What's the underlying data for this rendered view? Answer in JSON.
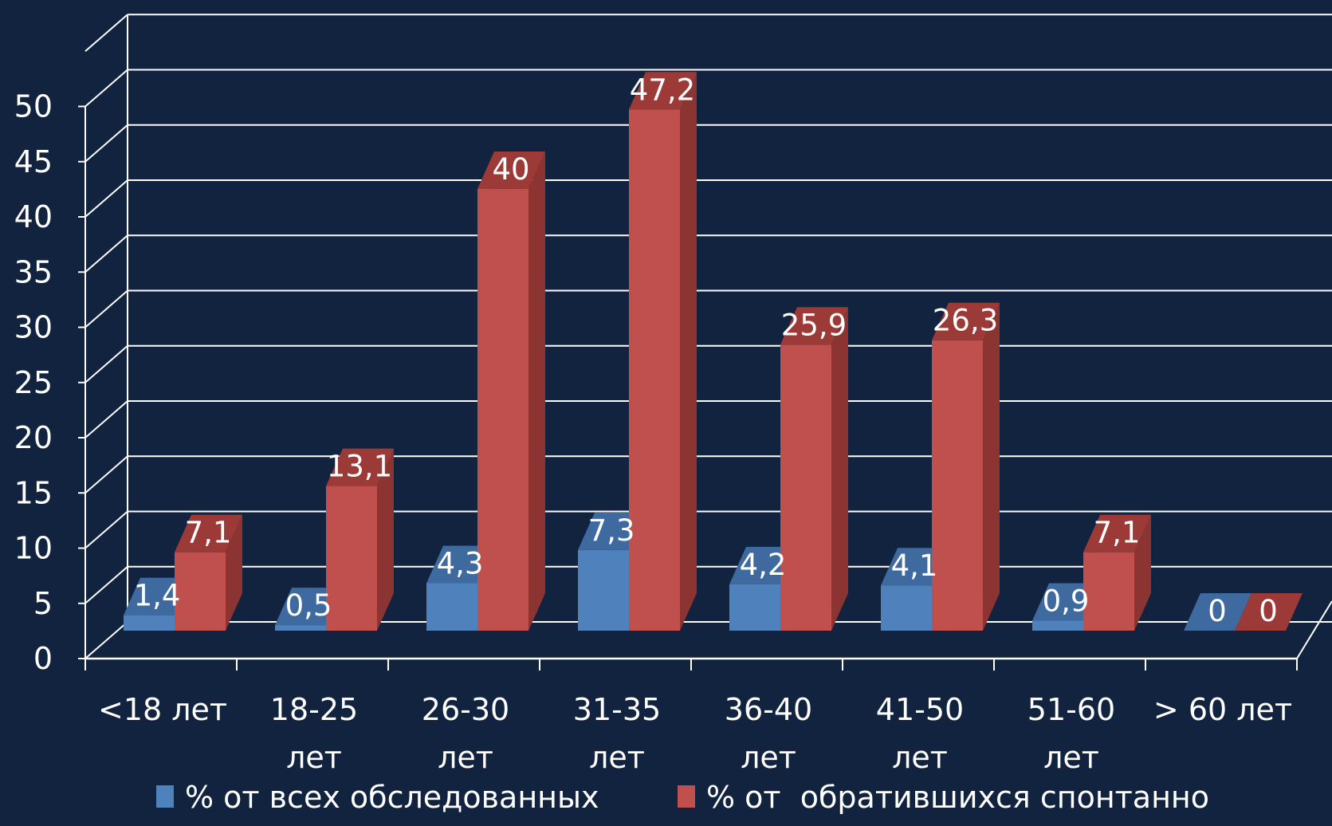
{
  "chart_data": {
    "type": "bar",
    "categories": [
      [
        "<18 лет"
      ],
      [
        "18-25",
        "лет"
      ],
      [
        "26-30",
        "лет"
      ],
      [
        "31-35",
        "лет"
      ],
      [
        "36-40",
        "лет"
      ],
      [
        "41-50",
        "лет"
      ],
      [
        "51-60",
        "лет"
      ],
      [
        "> 60 лет"
      ]
    ],
    "series": [
      {
        "name": "% от всех обследованных",
        "values": [
          1.4,
          0.5,
          4.3,
          7.3,
          4.2,
          4.1,
          0.9,
          0
        ],
        "labels": [
          "1,4",
          "0,5",
          "4,3",
          "7,3",
          "4,2",
          "4,1",
          "0,9",
          "0"
        ]
      },
      {
        "name": "% от  обратившихся спонтанно",
        "values": [
          7.1,
          13.1,
          40,
          47.2,
          25.9,
          26.3,
          7.1,
          0
        ],
        "labels": [
          "7,1",
          "13,1",
          "40",
          "47,2",
          "25,9",
          "26,3",
          "7,1",
          "0"
        ]
      }
    ],
    "yticks": [
      "0",
      "5",
      "10",
      "15",
      "20",
      "25",
      "30",
      "35",
      "40",
      "45",
      "50"
    ],
    "ylim": [
      0,
      50
    ],
    "grid": true,
    "legend_position": "bottom",
    "three_d": true
  },
  "colors": {
    "background": "#12233f",
    "series1_front": "#4f81bd",
    "series1_side": "#3a6597",
    "series1_top": "#3f6aa0",
    "series2_front": "#c0504d",
    "series2_side": "#8c3432",
    "series2_top": "#9c3a37",
    "grid": "#ffffff",
    "text": "#ffffff"
  }
}
